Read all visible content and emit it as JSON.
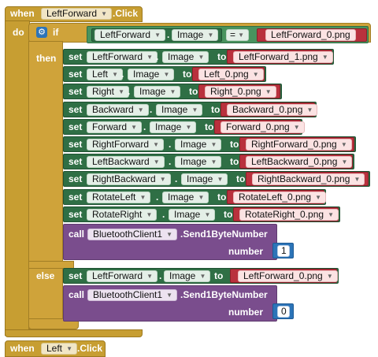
{
  "event1": {
    "when": "when",
    "component": "LeftForward",
    "event": ".Click"
  },
  "event2": {
    "when": "when",
    "component": "Left",
    "event": ".Click"
  },
  "kw": {
    "do": "do",
    "if": "if",
    "then": "then",
    "else": "else",
    "set": "set",
    "to": "to",
    "call": "call",
    "number": "number"
  },
  "condition": {
    "component": "LeftForward",
    "prop": "Image",
    "op": "=",
    "value": "LeftForward_0.png"
  },
  "then_sets": [
    {
      "component": "LeftForward",
      "prop": "Image",
      "value": "LeftForward_1.png"
    },
    {
      "component": "Left",
      "prop": "Image",
      "value": "Left_0.png"
    },
    {
      "component": "Right",
      "prop": "Image",
      "value": "Right_0.png"
    },
    {
      "component": "Backward",
      "prop": "Image",
      "value": "Backward_0.png"
    },
    {
      "component": "Forward",
      "prop": "Image",
      "value": "Forward_0.png"
    },
    {
      "component": "RightForward",
      "prop": "Image",
      "value": "RightForward_0.png"
    },
    {
      "component": "LeftBackward",
      "prop": "Image",
      "value": "LeftBackward_0.png"
    },
    {
      "component": "RightBackward",
      "prop": "Image",
      "value": "RightBackward_0.png"
    },
    {
      "component": "RotateLeft",
      "prop": "Image",
      "value": "RotateLeft_0.png"
    },
    {
      "component": "RotateRight",
      "prop": "Image",
      "value": "RotateRight_0.png"
    }
  ],
  "then_call": {
    "component": "BluetoothClient1",
    "method": ".Send1ByteNumber",
    "number": "1"
  },
  "else_set": {
    "component": "LeftForward",
    "prop": "Image",
    "value": "LeftForward_0.png"
  },
  "else_call": {
    "component": "BluetoothClient1",
    "method": ".Send1ByteNumber",
    "number": "0"
  },
  "colors": {
    "event": "#c79e32",
    "control": "#cfa33a",
    "setter": "#2f6f45",
    "text": "#b9313d",
    "call": "#7a4d8d",
    "math": "#2c74b8"
  },
  "icons": {
    "if_gear": "gear-icon",
    "dropdown": "dropdown-caret-icon"
  }
}
